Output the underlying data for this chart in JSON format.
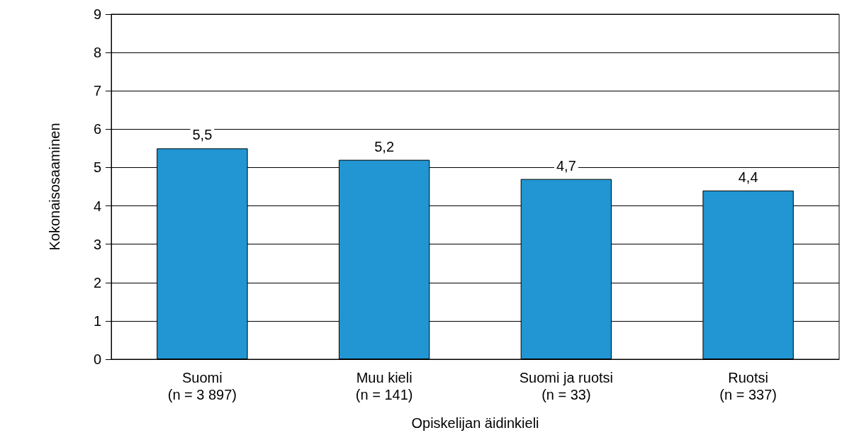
{
  "chart_data": {
    "type": "bar",
    "xlabel": "Opiskelijan äidinkieli",
    "ylabel": "Kokonaisosaaminen",
    "categories": [
      "Suomi\n(n = 3 897)",
      "Muu kieli\n(n = 141)",
      "Suomi ja ruotsi\n(n = 33)",
      "Ruotsi\n(n = 337)"
    ],
    "values": [
      5.5,
      5.2,
      4.7,
      4.4
    ],
    "value_labels": [
      "5,5",
      "5,2",
      "4,7",
      "4,4"
    ],
    "color": "#2196d3",
    "ylim": [
      0,
      9
    ],
    "yticks": [
      0,
      1,
      2,
      3,
      4,
      5,
      6,
      7,
      8,
      9
    ],
    "grid": "y"
  }
}
